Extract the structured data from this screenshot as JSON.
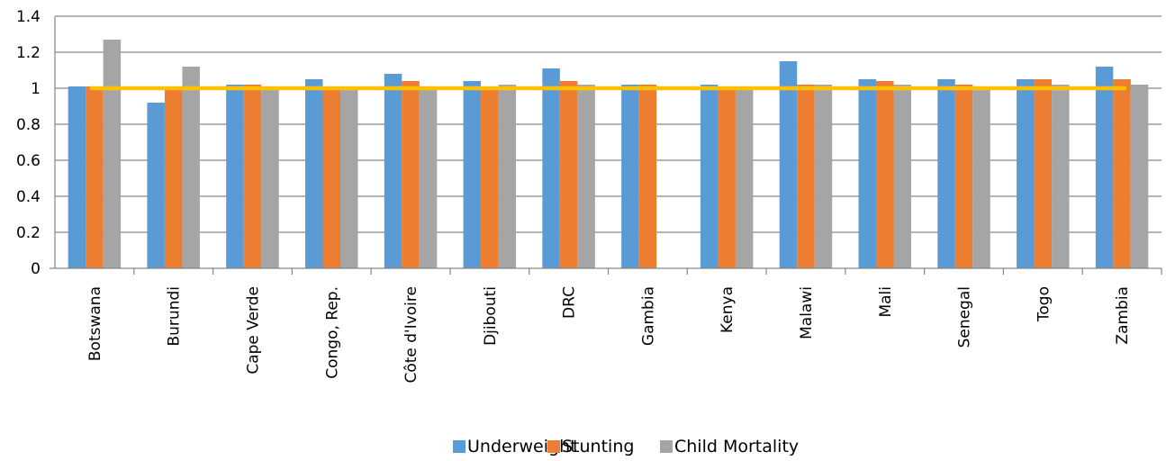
{
  "chart_data": {
    "type": "bar",
    "title": "",
    "xlabel": "",
    "ylabel": "",
    "categories": [
      "Botswana",
      "Burundi",
      "Cape Verde",
      "Congo, Rep.",
      "Côte d'Ivoire",
      "Djibouti",
      "DRC",
      "Gambia",
      "Kenya",
      "Malawi",
      "Mali",
      "Senegal",
      "Togo",
      "Zambia"
    ],
    "series": [
      {
        "name": "Underweight",
        "color": "#5B9BD5",
        "values": [
          1.01,
          0.92,
          1.02,
          1.05,
          1.08,
          1.04,
          1.11,
          1.02,
          1.02,
          1.15,
          1.05,
          1.05,
          1.05,
          1.12
        ]
      },
      {
        "name": "Stunting",
        "color": "#ED7D31",
        "values": [
          1.01,
          0.99,
          1.02,
          1.0,
          1.04,
          1.0,
          1.04,
          1.02,
          1.0,
          1.02,
          1.04,
          1.02,
          1.05,
          1.05
        ]
      },
      {
        "name": "Child Mortality",
        "color": "#A5A5A5",
        "values": [
          1.27,
          1.12,
          1.0,
          1.0,
          1.0,
          1.02,
          1.02,
          null,
          1.0,
          1.02,
          1.02,
          1.0,
          1.02,
          1.02
        ]
      }
    ],
    "reference_line": {
      "value": 1.0,
      "color": "#FFC000"
    },
    "ylim": [
      0,
      1.4
    ],
    "yticks": [
      "0",
      "0.2",
      "0.4",
      "0.6",
      "0.8",
      "1",
      "1.2",
      "1.4"
    ],
    "grid": true,
    "legend_position": "bottom"
  }
}
